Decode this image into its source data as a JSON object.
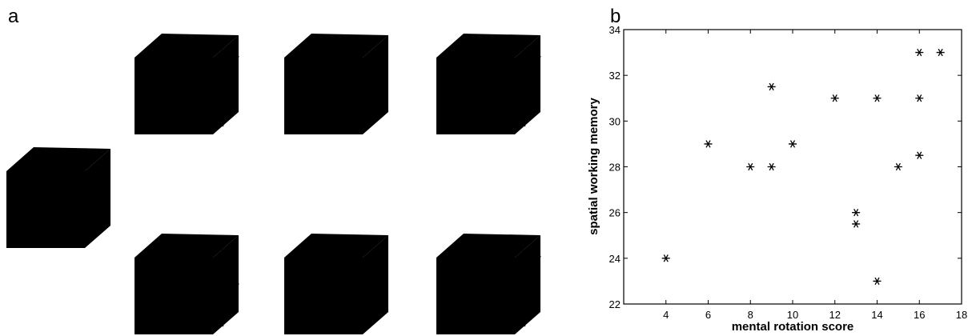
{
  "panel_a": {
    "label": "a"
  },
  "chart_data": {
    "type": "scatter",
    "panel_label": "b",
    "x_label": "mental rotation score",
    "y_label": "spatial working memory",
    "x": [
      4,
      6,
      8,
      9,
      9,
      10,
      12,
      13,
      13,
      14,
      14,
      15,
      16,
      16,
      16,
      17
    ],
    "values": [
      24,
      29,
      28,
      31.5,
      28,
      29,
      31,
      26,
      25.5,
      31,
      23,
      28,
      33,
      31,
      28.5,
      33
    ],
    "color": "#000000",
    "xlim": [
      2,
      18
    ],
    "xticks": [
      4,
      6,
      8,
      10,
      12,
      14,
      16,
      18
    ],
    "ylim": [
      22,
      34
    ],
    "yticks": [
      22,
      24,
      26,
      28,
      30,
      32,
      34
    ]
  }
}
